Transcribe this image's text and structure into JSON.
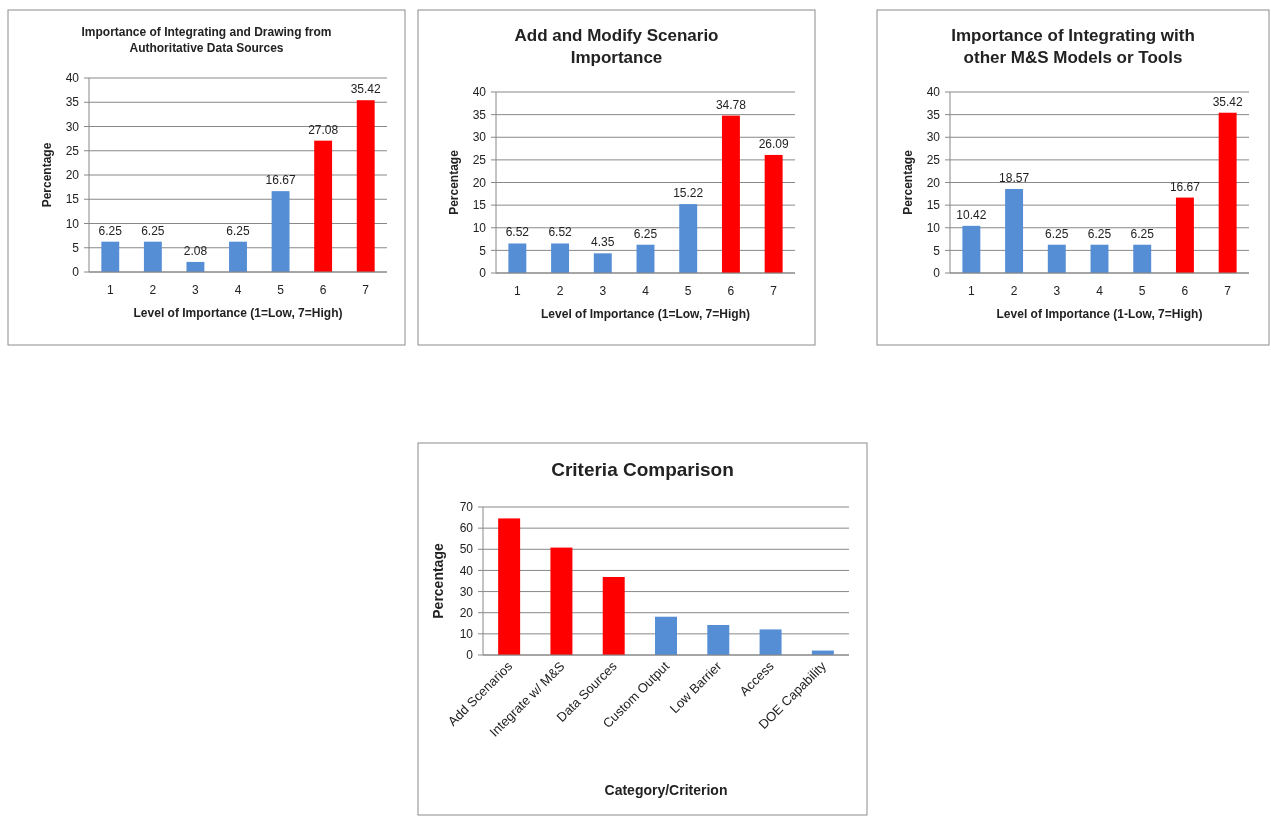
{
  "chart_data": [
    {
      "type": "bar",
      "title": "Importance of Integrating and Drawing from Authoritative Data Sources",
      "xlabel": "Level of Importance (1=Low, 7=High)",
      "ylabel": "Percentage",
      "categories": [
        "1",
        "2",
        "3",
        "4",
        "5",
        "6",
        "7"
      ],
      "values": [
        6.25,
        6.25,
        2.08,
        6.25,
        16.67,
        27.08,
        35.42
      ],
      "colors": [
        "#558ed5",
        "#558ed5",
        "#558ed5",
        "#558ed5",
        "#558ed5",
        "#ff0000",
        "#ff0000"
      ],
      "ylim": [
        0,
        40
      ],
      "yticks": [
        0,
        5,
        10,
        15,
        20,
        25,
        30,
        35,
        40
      ],
      "grid": "y",
      "data_labels": true
    },
    {
      "type": "bar",
      "title": "Add and Modify Scenario Importance",
      "xlabel": "Level of Importance (1=Low, 7=High)",
      "ylabel": "Percentage",
      "categories": [
        "1",
        "2",
        "3",
        "4",
        "5",
        "6",
        "7"
      ],
      "values": [
        6.52,
        6.52,
        4.35,
        6.25,
        15.22,
        34.78,
        26.09
      ],
      "colors": [
        "#558ed5",
        "#558ed5",
        "#558ed5",
        "#558ed5",
        "#558ed5",
        "#ff0000",
        "#ff0000"
      ],
      "ylim": [
        0,
        40
      ],
      "yticks": [
        0,
        5,
        10,
        15,
        20,
        25,
        30,
        35,
        40
      ],
      "grid": "y",
      "data_labels": true
    },
    {
      "type": "bar",
      "title": "Importance of Integrating with other M&S Models or Tools",
      "xlabel": "Level of Importance (1-Low, 7=High)",
      "ylabel": "Percentage",
      "categories": [
        "1",
        "2",
        "3",
        "4",
        "5",
        "6",
        "7"
      ],
      "values": [
        10.42,
        18.57,
        6.25,
        6.25,
        6.25,
        16.67,
        35.42
      ],
      "colors": [
        "#558ed5",
        "#558ed5",
        "#558ed5",
        "#558ed5",
        "#558ed5",
        "#ff0000",
        "#ff0000"
      ],
      "ylim": [
        0,
        40
      ],
      "yticks": [
        0,
        5,
        10,
        15,
        20,
        25,
        30,
        35,
        40
      ],
      "grid": "y",
      "data_labels": true
    },
    {
      "type": "bar",
      "title": "Criteria Comparison",
      "xlabel": "Category/Criterion",
      "ylabel": "Percentage",
      "categories": [
        "Add Scenarios",
        "Integrate w/ M&S",
        "Data Sources",
        "Custom Output",
        "Low Barrier",
        "Access",
        "DOE Capability"
      ],
      "values": [
        64.6,
        50.8,
        36.9,
        18.1,
        14.2,
        12.1,
        2.1
      ],
      "colors": [
        "#ff0000",
        "#ff0000",
        "#ff0000",
        "#558ed5",
        "#558ed5",
        "#558ed5",
        "#558ed5"
      ],
      "ylim": [
        0,
        70
      ],
      "yticks": [
        0,
        10,
        20,
        30,
        40,
        50,
        60,
        70
      ],
      "grid": "y"
    }
  ]
}
